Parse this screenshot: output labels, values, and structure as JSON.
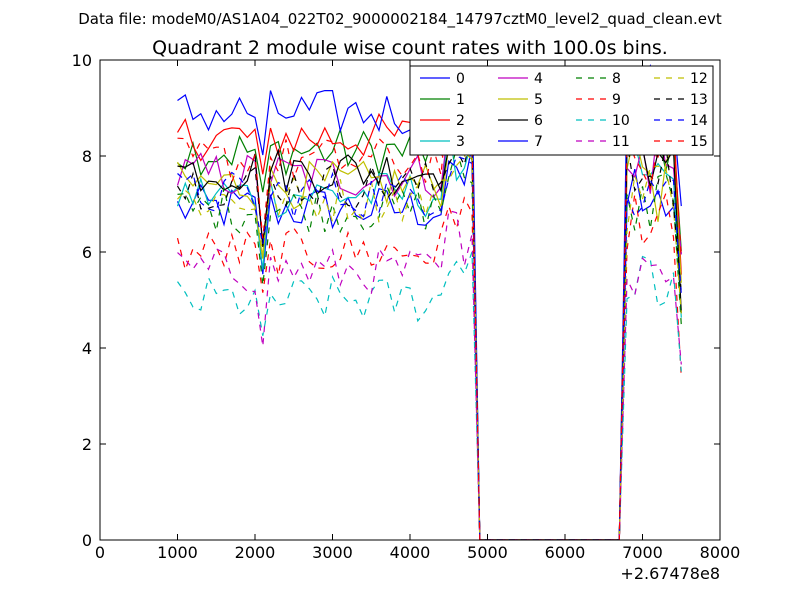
{
  "suptitle": "Data file: modeM0/AS1A04_022T02_9000002184_14797cztM0_level2_quad_clean.evt",
  "chart_data": {
    "type": "line",
    "title": "Quadrant 2 module wise count rates with 100.0s bins.",
    "xlabel": "",
    "ylabel": "",
    "x_offset_label": "+2.67478e8",
    "xlim": [
      0,
      8000
    ],
    "ylim": [
      0,
      10
    ],
    "x_ticks": [
      "0",
      "1000",
      "2000",
      "3000",
      "4000",
      "5000",
      "6000",
      "7000",
      "8000"
    ],
    "y_ticks": [
      "0",
      "2",
      "4",
      "6",
      "8",
      "10"
    ],
    "grid": false,
    "legend_position": "top-right",
    "x": [
      1000,
      1100,
      1200,
      1300,
      1400,
      1500,
      1600,
      1700,
      1800,
      1900,
      2000,
      2100,
      2200,
      2300,
      2400,
      2500,
      2600,
      2700,
      2800,
      2900,
      3000,
      3100,
      3200,
      3300,
      3400,
      3500,
      3600,
      3700,
      3800,
      3900,
      4000,
      4100,
      4200,
      4300,
      4400,
      4500,
      4600,
      4700,
      4800,
      4900,
      5000,
      5100,
      5200,
      5300,
      5400,
      5500,
      5600,
      5700,
      5800,
      5900,
      6000,
      6100,
      6200,
      6300,
      6400,
      6500,
      6600,
      6700,
      6800,
      6900,
      7000,
      7100,
      7200,
      7300,
      7400,
      7500
    ],
    "gap": {
      "drop_start": 4800,
      "zero_from": 4900,
      "zero_to": 6700,
      "resume": 6800
    },
    "series": [
      {
        "name": "0",
        "color": "#0000ff",
        "dash": false,
        "base": 6.9
      },
      {
        "name": "1",
        "color": "#008000",
        "dash": false,
        "base": 8.1
      },
      {
        "name": "2",
        "color": "#ff0000",
        "dash": false,
        "base": 8.4
      },
      {
        "name": "3",
        "color": "#00bfbf",
        "dash": false,
        "base": 7.2
      },
      {
        "name": "4",
        "color": "#bf00bf",
        "dash": false,
        "base": 7.6
      },
      {
        "name": "5",
        "color": "#bfbf00",
        "dash": false,
        "base": 7.4
      },
      {
        "name": "6",
        "color": "#000000",
        "dash": false,
        "base": 7.7
      },
      {
        "name": "7",
        "color": "#0000ff",
        "dash": false,
        "base": 8.9
      },
      {
        "name": "8",
        "color": "#008000",
        "dash": true,
        "base": 6.9
      },
      {
        "name": "9",
        "color": "#ff0000",
        "dash": true,
        "base": 6.0
      },
      {
        "name": "10",
        "color": "#00bfbf",
        "dash": true,
        "base": 5.0
      },
      {
        "name": "11",
        "color": "#bf00bf",
        "dash": true,
        "base": 5.6
      },
      {
        "name": "12",
        "color": "#bfbf00",
        "dash": true,
        "base": 7.1
      },
      {
        "name": "13",
        "color": "#000000",
        "dash": true,
        "base": 7.4
      },
      {
        "name": "14",
        "color": "#0000ff",
        "dash": true,
        "base": 7.2
      },
      {
        "name": "15",
        "color": "#ff0000",
        "dash": true,
        "base": 7.9
      }
    ]
  }
}
